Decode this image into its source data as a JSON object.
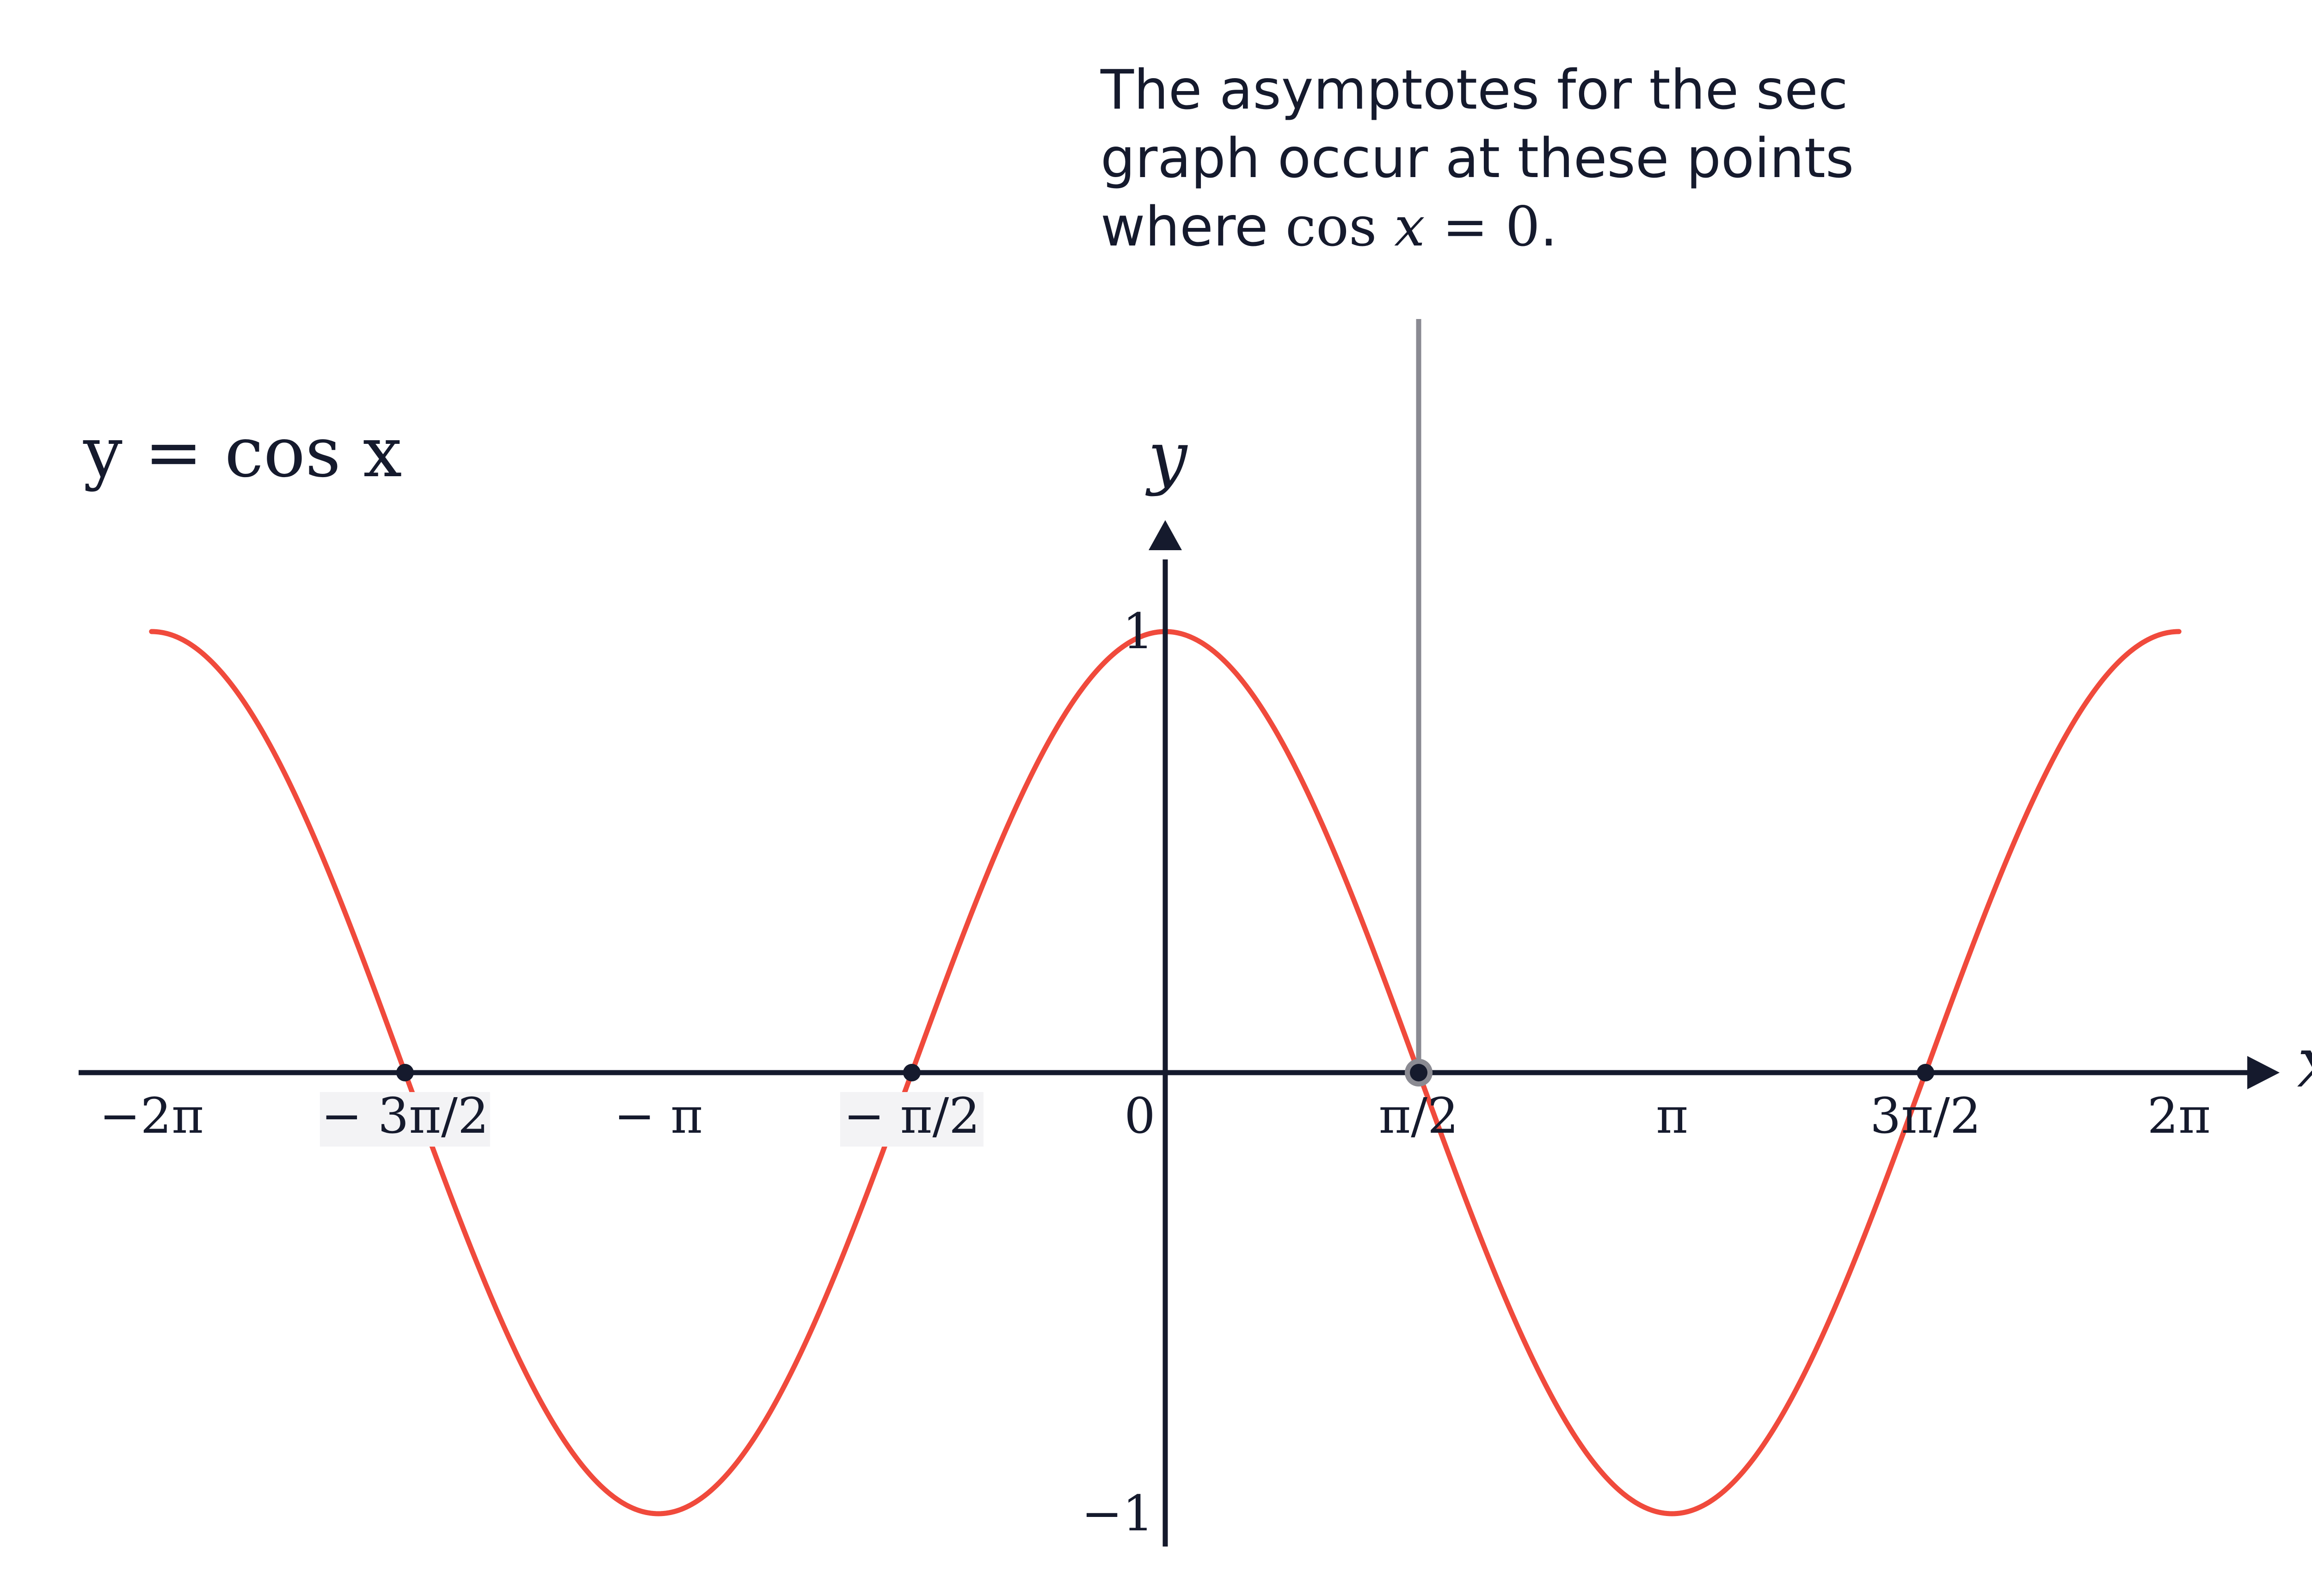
{
  "annotation": {
    "line1": "The asymptotes for the sec",
    "line2": "graph occur at these points",
    "line3_prefix": "where ",
    "line3_cos": "cos ",
    "line3_x": "x",
    "line3_eq": " = 0",
    "line3_end": "."
  },
  "colors": {
    "curve": "#f04a3c",
    "axes": "#151a2d",
    "asymptote": "#8a8a92",
    "text": "#151a2d"
  },
  "chart_data": {
    "type": "line",
    "title": "y = cos x",
    "xlabel": "x",
    "ylabel": "y",
    "xlim": [
      -6.2832,
      6.2832
    ],
    "ylim": [
      -1,
      1
    ],
    "x_ticks": [
      {
        "value": -6.2832,
        "label": "−2π"
      },
      {
        "value": -4.7124,
        "label": "− 3π/2"
      },
      {
        "value": -3.1416,
        "label": "− π"
      },
      {
        "value": -1.5708,
        "label": "− π/2"
      },
      {
        "value": 0,
        "label": "0"
      },
      {
        "value": 1.5708,
        "label": "π/2"
      },
      {
        "value": 3.1416,
        "label": "π"
      },
      {
        "value": 4.7124,
        "label": "3π/2"
      },
      {
        "value": 6.2832,
        "label": "2π"
      }
    ],
    "y_ticks": [
      {
        "value": 1,
        "label": "1"
      },
      {
        "value": -1,
        "label": "−1"
      }
    ],
    "series": [
      {
        "function": "cos",
        "x_range": [
          -6.2832,
          6.2832
        ]
      }
    ],
    "points": [
      {
        "x": -4.7124,
        "y": 0
      },
      {
        "x": -1.5708,
        "y": 0
      },
      {
        "x": 1.5708,
        "y": 0,
        "highlighted": true
      },
      {
        "x": 4.7124,
        "y": 0
      }
    ],
    "asymptote_x": 1.5708
  }
}
